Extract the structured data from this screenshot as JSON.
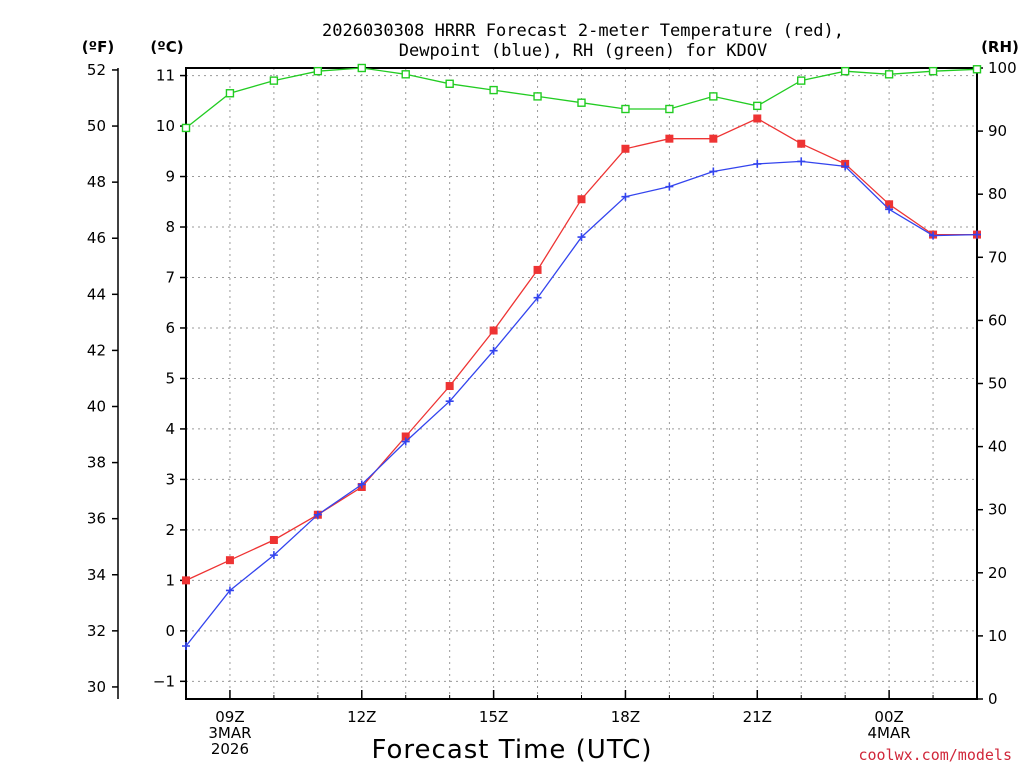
{
  "chart_data": {
    "type": "line",
    "title_lines": [
      "2026030308 HRRR Forecast 2-meter Temperature (red),",
      "Dewpoint (blue), RH (green) for KDOV"
    ],
    "axis_units": {
      "fahrenheit": "(ºF)",
      "celsius": "(ºC)",
      "rh": "(RH)"
    },
    "xlabel": "Forecast Time (UTC)",
    "credit": "coolwx.com/models",
    "x_range_hours": [
      8,
      26
    ],
    "x_ticks": [
      {
        "hour": 9,
        "lines": [
          "09Z",
          "3MAR",
          "2026"
        ]
      },
      {
        "hour": 12,
        "lines": [
          "12Z"
        ]
      },
      {
        "hour": 15,
        "lines": [
          "15Z"
        ]
      },
      {
        "hour": 18,
        "lines": [
          "18Z"
        ]
      },
      {
        "hour": 21,
        "lines": [
          "21Z"
        ]
      },
      {
        "hour": 24,
        "lines": [
          "00Z",
          "4MAR"
        ]
      }
    ],
    "celsius_axis": {
      "range": [
        -1.35,
        11.15
      ],
      "ticks": [
        "-1",
        "0",
        "1",
        "2",
        "3",
        "4",
        "5",
        "6",
        "7",
        "8",
        "9",
        "10",
        "11"
      ]
    },
    "fahrenheit_axis": {
      "range": [
        29.57,
        52.07
      ],
      "ticks": [
        "30",
        "32",
        "34",
        "36",
        "38",
        "40",
        "42",
        "44",
        "46",
        "48",
        "50",
        "52"
      ]
    },
    "rh_axis": {
      "range": [
        0,
        100
      ],
      "ticks": [
        "0",
        "10",
        "20",
        "30",
        "40",
        "50",
        "60",
        "70",
        "80",
        "90",
        "100"
      ]
    },
    "x": [
      8,
      9,
      10,
      11,
      12,
      13,
      14,
      15,
      16,
      17,
      18,
      19,
      20,
      21,
      22,
      23,
      24,
      25,
      26
    ],
    "series": [
      {
        "name": "Temperature",
        "color": "#ee3333",
        "marker": "filled-square",
        "axis": "celsius",
        "values": [
          1.0,
          1.4,
          1.8,
          2.3,
          2.85,
          3.85,
          4.85,
          5.95,
          7.15,
          8.55,
          9.55,
          9.75,
          9.75,
          10.15,
          9.65,
          9.25,
          8.45,
          7.85,
          7.85
        ]
      },
      {
        "name": "Dewpoint",
        "color": "#3344ee",
        "marker": "plus",
        "axis": "celsius",
        "values": [
          -0.3,
          0.8,
          1.5,
          2.3,
          2.9,
          3.75,
          4.55,
          5.55,
          6.6,
          7.8,
          8.6,
          8.8,
          9.1,
          9.25,
          9.3,
          9.2,
          8.35,
          7.83,
          7.85
        ]
      },
      {
        "name": "RH",
        "color": "#22cc22",
        "marker": "hollow-square",
        "axis": "rh",
        "values": [
          90.5,
          96,
          98,
          99.5,
          100,
          99,
          97.5,
          96.5,
          95.5,
          94.5,
          93.5,
          93.5,
          95.5,
          94,
          98,
          99.5,
          99,
          99.5,
          99.8
        ]
      }
    ]
  }
}
